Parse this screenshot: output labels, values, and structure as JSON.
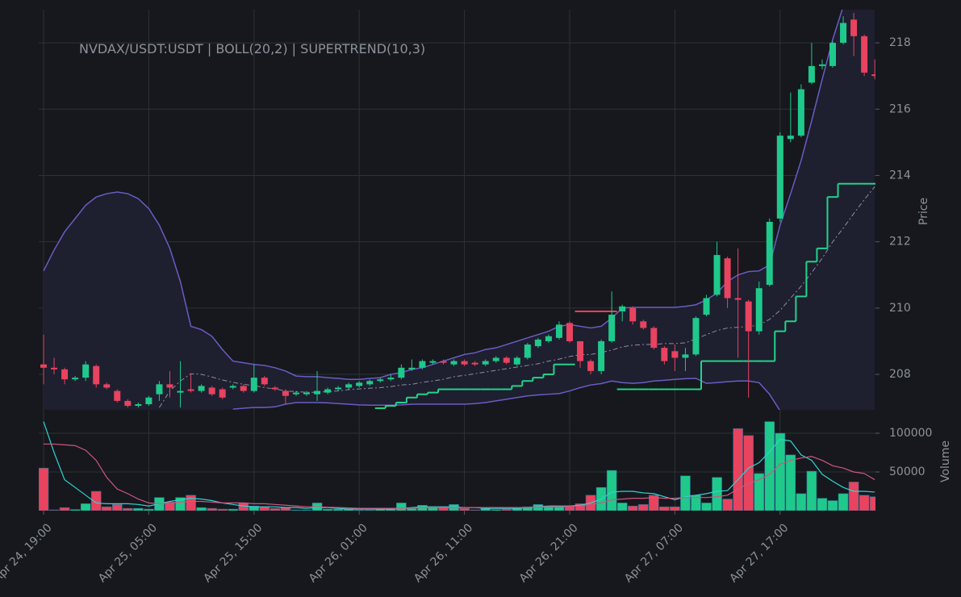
{
  "chart_data": [
    {
      "type": "candlestick",
      "title": "NVDAX/USDT:USDT | BOLL(20,2) | SUPERTREND(10,3)",
      "ylabel": "Price",
      "up_color": "#1fc98b",
      "down_color": "#e8435f",
      "ylim": [
        206.93,
        219.0
      ],
      "yticks": [
        208,
        210,
        212,
        214,
        216,
        218
      ],
      "grid": true,
      "open": [
        208.3,
        208.2,
        208.15,
        207.85,
        207.9,
        208.25,
        207.7,
        207.5,
        207.2,
        207.05,
        207.1,
        207.4,
        207.7,
        207.45,
        207.55,
        207.5,
        207.6,
        207.55,
        207.6,
        207.65,
        207.5,
        207.9,
        207.6,
        207.5,
        207.4,
        207.4,
        207.4,
        207.45,
        207.55,
        207.6,
        207.65,
        207.7,
        207.8,
        207.85,
        207.9,
        208.15,
        208.2,
        208.35,
        208.4,
        208.3,
        208.4,
        208.35,
        208.3,
        208.4,
        208.5,
        208.3,
        208.5,
        208.85,
        209.0,
        209.1,
        209.55,
        209.0,
        208.4,
        208.1,
        209.0,
        209.9,
        210.0,
        209.6,
        209.4,
        208.8,
        208.7,
        208.5,
        208.6,
        209.8,
        210.4,
        211.5,
        210.3,
        210.2,
        209.3,
        210.7,
        212.7,
        215.1,
        215.2,
        216.8,
        217.3,
        217.3,
        218.0,
        218.7,
        218.2,
        217.05
      ],
      "high": [
        209.2,
        208.5,
        208.2,
        207.95,
        208.4,
        208.3,
        207.75,
        207.55,
        207.25,
        207.15,
        207.35,
        207.8,
        208.1,
        208.4,
        208.0,
        207.7,
        207.65,
        207.6,
        207.7,
        207.7,
        208.3,
        207.95,
        207.65,
        207.55,
        207.5,
        207.5,
        208.1,
        207.6,
        207.65,
        207.75,
        207.8,
        207.85,
        207.9,
        208.0,
        208.3,
        208.45,
        208.45,
        208.45,
        208.45,
        208.45,
        208.45,
        208.4,
        208.45,
        208.55,
        208.55,
        208.55,
        208.95,
        209.1,
        209.2,
        209.6,
        209.6,
        209.0,
        208.45,
        209.05,
        210.5,
        210.1,
        210.05,
        209.65,
        209.45,
        208.85,
        208.9,
        208.8,
        209.75,
        210.4,
        212.0,
        211.55,
        211.8,
        210.25,
        210.8,
        212.7,
        215.3,
        216.5,
        216.75,
        218.0,
        217.5,
        218.05,
        218.8,
        218.9,
        218.25,
        217.5
      ],
      "low": [
        207.7,
        208.0,
        207.7,
        207.8,
        207.8,
        207.6,
        207.55,
        207.15,
        207.0,
        207.0,
        207.05,
        207.2,
        207.3,
        207.0,
        207.45,
        207.45,
        207.35,
        207.25,
        207.55,
        207.45,
        207.45,
        207.65,
        207.5,
        207.1,
        207.35,
        207.35,
        207.2,
        207.4,
        207.5,
        207.55,
        207.6,
        207.65,
        207.75,
        207.8,
        207.85,
        208.1,
        208.15,
        208.3,
        208.3,
        208.25,
        208.25,
        208.25,
        208.25,
        208.35,
        208.3,
        208.25,
        208.45,
        208.8,
        208.95,
        209.05,
        208.95,
        208.2,
        208.0,
        208.0,
        208.95,
        209.6,
        209.5,
        209.35,
        208.75,
        208.3,
        208.1,
        208.1,
        208.55,
        209.75,
        210.35,
        210.0,
        208.5,
        207.3,
        209.2,
        210.65,
        212.6,
        215.0,
        215.15,
        216.75,
        217.2,
        217.25,
        217.95,
        217.6,
        217.0,
        216.9
      ],
      "close": [
        208.2,
        208.15,
        207.85,
        207.9,
        208.3,
        207.7,
        207.6,
        207.2,
        207.05,
        207.1,
        207.3,
        207.7,
        207.6,
        207.5,
        207.5,
        207.65,
        207.4,
        207.3,
        207.65,
        207.5,
        207.9,
        207.7,
        207.55,
        207.35,
        207.45,
        207.45,
        207.5,
        207.55,
        207.6,
        207.7,
        207.75,
        207.8,
        207.85,
        207.9,
        208.2,
        208.2,
        208.4,
        208.4,
        208.35,
        208.4,
        208.3,
        208.3,
        208.4,
        208.5,
        208.35,
        208.5,
        208.9,
        209.05,
        209.15,
        209.5,
        209.0,
        208.4,
        208.1,
        209.0,
        209.8,
        210.05,
        209.6,
        209.4,
        208.8,
        208.4,
        208.5,
        208.6,
        209.7,
        210.3,
        211.6,
        210.3,
        210.25,
        209.3,
        210.6,
        212.6,
        215.2,
        215.2,
        216.6,
        217.3,
        217.35,
        218.0,
        218.6,
        218.2,
        217.1,
        217.0
      ],
      "bollinger": {
        "color": "#6b5cc4",
        "mid_color": "#8e8ea4",
        "fill": "#1e1f2f",
        "upper": [
          211.12,
          211.75,
          212.3,
          212.7,
          213.1,
          213.35,
          213.45,
          213.5,
          213.45,
          213.3,
          213.0,
          212.5,
          211.8,
          210.8,
          209.45,
          209.35,
          209.15,
          208.75,
          208.4,
          208.35,
          208.3,
          208.27,
          208.2,
          208.1,
          207.95,
          207.93,
          207.93,
          207.9,
          207.88,
          207.85,
          207.85,
          207.88,
          207.9,
          208.0,
          208.05,
          208.15,
          208.2,
          208.3,
          208.4,
          208.5,
          208.6,
          208.65,
          208.75,
          208.8,
          208.9,
          209.0,
          209.1,
          209.2,
          209.3,
          209.45,
          209.5,
          209.45,
          209.4,
          209.45,
          209.7,
          210.0,
          210.02,
          210.02,
          210.02,
          210.02,
          210.02,
          210.05,
          210.1,
          210.25,
          210.45,
          210.8,
          211.0,
          211.1,
          211.12,
          211.3,
          212.5,
          213.45,
          214.45,
          215.65,
          216.9,
          218.1,
          219.1,
          219.9,
          220.5,
          220.9
        ],
        "middle": [
          null,
          null,
          null,
          null,
          null,
          null,
          null,
          null,
          null,
          null,
          null,
          207.0,
          207.5,
          207.8,
          208.02,
          208.0,
          207.92,
          207.83,
          207.76,
          207.7,
          207.66,
          207.6,
          207.56,
          207.5,
          207.48,
          207.46,
          207.46,
          207.48,
          207.5,
          207.54,
          207.56,
          207.58,
          207.6,
          207.63,
          207.68,
          207.7,
          207.76,
          207.8,
          207.85,
          207.93,
          207.97,
          208.02,
          208.07,
          208.12,
          208.17,
          208.22,
          208.27,
          208.32,
          208.4,
          208.46,
          208.54,
          208.59,
          208.6,
          208.66,
          208.73,
          208.83,
          208.88,
          208.9,
          208.9,
          208.93,
          208.93,
          208.95,
          209.07,
          209.2,
          209.32,
          209.4,
          209.42,
          209.44,
          209.49,
          209.66,
          209.93,
          210.3,
          210.66,
          211.07,
          211.5,
          212.0,
          212.41,
          212.85,
          213.27,
          213.66
        ],
        "lower": [
          null,
          null,
          null,
          null,
          null,
          null,
          null,
          null,
          null,
          null,
          null,
          null,
          null,
          null,
          null,
          null,
          null,
          null,
          206.95,
          206.98,
          207.0,
          207.0,
          207.02,
          207.1,
          207.15,
          207.15,
          207.15,
          207.14,
          207.12,
          207.1,
          207.08,
          207.07,
          207.07,
          207.07,
          207.08,
          207.1,
          207.1,
          207.1,
          207.1,
          207.1,
          207.1,
          207.12,
          207.15,
          207.2,
          207.25,
          207.3,
          207.35,
          207.38,
          207.4,
          207.42,
          207.5,
          207.6,
          207.68,
          207.72,
          207.8,
          207.75,
          207.73,
          207.75,
          207.8,
          207.82,
          207.85,
          207.87,
          207.88,
          207.73,
          207.75,
          207.78,
          207.8,
          207.8,
          207.75,
          207.4,
          206.9,
          null,
          null,
          null,
          null,
          null,
          null,
          null,
          null,
          null
        ]
      },
      "supertrend": {
        "up_color": "#22d48a",
        "down_color": "#e8435f",
        "up": [
          null,
          null,
          null,
          null,
          null,
          null,
          null,
          null,
          null,
          null,
          null,
          null,
          null,
          null,
          null,
          null,
          null,
          null,
          null,
          null,
          null,
          null,
          null,
          null,
          null,
          null,
          null,
          null,
          null,
          null,
          null,
          null,
          206.98,
          207.05,
          207.15,
          207.3,
          207.4,
          207.45,
          207.55,
          207.55,
          207.55,
          207.55,
          207.55,
          207.55,
          207.55,
          207.65,
          207.8,
          207.9,
          208.0,
          208.3,
          208.3,
          null,
          null,
          null,
          null,
          207.55,
          207.55,
          207.55,
          207.55,
          207.55,
          207.55,
          207.55,
          207.55,
          208.4,
          208.4,
          208.4,
          208.4,
          208.4,
          208.4,
          208.4,
          209.3,
          209.6,
          210.35,
          211.4,
          211.8,
          213.35,
          213.75,
          213.75,
          213.75,
          213.75
        ],
        "down": [
          null,
          null,
          null,
          null,
          null,
          null,
          null,
          null,
          null,
          null,
          null,
          null,
          null,
          null,
          null,
          null,
          null,
          null,
          null,
          null,
          null,
          null,
          null,
          null,
          null,
          null,
          null,
          null,
          null,
          null,
          null,
          null,
          null,
          null,
          null,
          null,
          null,
          null,
          null,
          null,
          null,
          null,
          null,
          null,
          null,
          null,
          null,
          null,
          null,
          null,
          null,
          209.9,
          209.9,
          209.9,
          209.9,
          null,
          null,
          null,
          null,
          null,
          null,
          null,
          null,
          null,
          null,
          null,
          null,
          null,
          null,
          null,
          null,
          null,
          null,
          null,
          null,
          null,
          null,
          null,
          null,
          null
        ]
      }
    },
    {
      "type": "bar",
      "ylabel": "Volume",
      "categories": [
        "Apr 24, 19:00",
        null,
        null,
        null,
        null,
        null,
        null,
        null,
        null,
        null,
        "Apr 25, 05:00",
        null,
        null,
        null,
        null,
        null,
        null,
        null,
        null,
        null,
        "Apr 25, 15:00",
        null,
        null,
        null,
        null,
        null,
        null,
        null,
        null,
        null,
        "Apr 26, 01:00",
        null,
        null,
        null,
        null,
        null,
        null,
        null,
        null,
        null,
        "Apr 26, 11:00",
        null,
        null,
        null,
        null,
        null,
        null,
        null,
        null,
        null,
        "Apr 26, 21:00",
        null,
        null,
        null,
        null,
        null,
        null,
        null,
        null,
        null,
        "Apr 27, 07:00",
        null,
        null,
        null,
        null,
        null,
        null,
        null,
        null,
        null,
        "Apr 27, 17:00",
        null,
        null,
        null,
        null,
        null,
        null,
        null,
        null,
        null
      ],
      "values": [
        55000,
        1000,
        4000,
        1500,
        9000,
        25000,
        5000,
        8000,
        3000,
        3000,
        2000,
        17000,
        11000,
        17000,
        20000,
        4000,
        3000,
        2000,
        2000,
        10000,
        6000,
        5000,
        3000,
        4000,
        1000,
        1000,
        10000,
        2000,
        2000,
        2000,
        1000,
        1000,
        2000,
        2000,
        10000,
        3000,
        7000,
        4000,
        4000,
        8000,
        3000,
        1000,
        3000,
        1500,
        2000,
        3000,
        5000,
        8000,
        6000,
        5000,
        6000,
        9000,
        20000,
        30000,
        52000,
        10000,
        6000,
        8000,
        20000,
        5000,
        5000,
        45000,
        20000,
        10000,
        43000,
        15000,
        106000,
        97000,
        48000,
        115000,
        100000,
        72000,
        22000,
        51000,
        16000,
        13000,
        22000,
        37000,
        20000,
        18000
      ],
      "ylim": [
        0,
        117700
      ],
      "yticks": [
        50000,
        100000
      ],
      "grid": true,
      "ma_lines": [
        {
          "color": "#2fd3d3",
          "values": [
            115000,
            75000,
            40000,
            30000,
            20000,
            10000,
            9000,
            9000,
            9000,
            8000,
            6000,
            9000,
            12000,
            14000,
            16000,
            15000,
            13000,
            10000,
            8000,
            6000,
            5000,
            5000,
            5000,
            4000,
            4000,
            3000,
            4000,
            4000,
            3000,
            2000,
            2000,
            2000,
            2000,
            2000,
            3000,
            4000,
            5000,
            5000,
            5000,
            5000,
            4000,
            4000,
            3000,
            3000,
            3000,
            3000,
            4000,
            5000,
            6000,
            6000,
            6000,
            7000,
            10000,
            15000,
            24000,
            25000,
            25000,
            23000,
            22000,
            18000,
            14000,
            18000,
            20000,
            22000,
            25000,
            26000,
            40000,
            55000,
            62000,
            76000,
            92000,
            90000,
            72000,
            65000,
            47000,
            38000,
            30000,
            25000,
            25000,
            24000
          ]
        },
        {
          "color": "#d2557f",
          "values": [
            86000,
            86000,
            85000,
            84000,
            78000,
            65000,
            43000,
            28000,
            22000,
            15000,
            10000,
            9000,
            10000,
            11000,
            12000,
            12000,
            11000,
            10000,
            10000,
            10000,
            9000,
            9000,
            8000,
            7000,
            6000,
            5000,
            5000,
            4500,
            4000,
            3500,
            3000,
            3000,
            3000,
            3000,
            3000,
            3500,
            4000,
            4000,
            4000,
            4000,
            4000,
            4000,
            4000,
            4000,
            4000,
            4000,
            4000,
            4500,
            5000,
            5000,
            5500,
            6000,
            8000,
            10000,
            14000,
            15000,
            16000,
            16000,
            17000,
            16000,
            16000,
            17000,
            17000,
            17000,
            18000,
            20000,
            28000,
            35000,
            40000,
            47000,
            60000,
            65000,
            68000,
            70000,
            65000,
            58000,
            55000,
            50000,
            48000,
            40000
          ]
        }
      ]
    }
  ]
}
